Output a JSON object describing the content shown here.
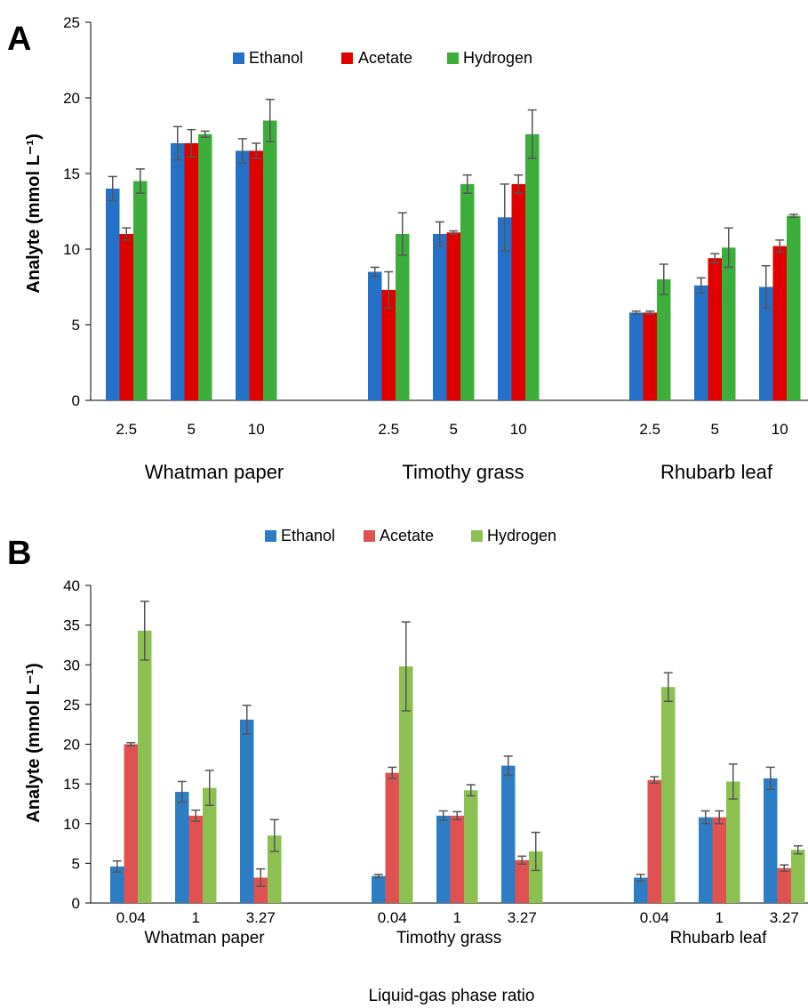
{
  "chart_data": [
    {
      "type": "bar",
      "panel_label": "A",
      "ylabel": "Analyte (mmol L⁻¹)",
      "xlabel": "",
      "ylim": [
        0,
        25
      ],
      "yticks": [
        0,
        5,
        10,
        15,
        20,
        25
      ],
      "legend_position": "top-center",
      "groups": [
        "Whatman paper",
        "Timothy grass",
        "Rhubarb leaf"
      ],
      "categories": [
        "2.5",
        "5",
        "10"
      ],
      "series": [
        {
          "name": "Ethanol",
          "color": "#2472C8",
          "values": [
            [
              14.0,
              17.0,
              16.5
            ],
            [
              8.5,
              11.0,
              12.1
            ],
            [
              5.8,
              7.6,
              7.5
            ]
          ],
          "errors": [
            [
              0.8,
              1.1,
              0.8
            ],
            [
              0.3,
              0.8,
              2.2
            ],
            [
              0.1,
              0.5,
              1.4
            ]
          ]
        },
        {
          "name": "Acetate",
          "color": "#E00000",
          "values": [
            [
              11.0,
              17.0,
              16.5
            ],
            [
              7.3,
              11.1,
              14.3
            ],
            [
              5.8,
              9.4,
              10.2
            ]
          ],
          "errors": [
            [
              0.4,
              0.9,
              0.5
            ],
            [
              1.2,
              0.1,
              0.6
            ],
            [
              0.1,
              0.3,
              0.4
            ]
          ]
        },
        {
          "name": "Hydrogen",
          "color": "#3DAE3C",
          "values": [
            [
              14.5,
              17.6,
              18.5
            ],
            [
              11.0,
              14.3,
              17.6
            ],
            [
              8.0,
              10.1,
              12.2
            ]
          ],
          "errors": [
            [
              0.8,
              0.2,
              1.4
            ],
            [
              1.4,
              0.6,
              1.6
            ],
            [
              1.0,
              1.3,
              0.1
            ]
          ]
        }
      ]
    },
    {
      "type": "bar",
      "panel_label": "B",
      "ylabel": "Analyte (mmol L⁻¹)",
      "xlabel": "Liquid-gas phase ratio",
      "ylim": [
        0,
        40
      ],
      "yticks": [
        0,
        5,
        10,
        15,
        20,
        25,
        30,
        35,
        40
      ],
      "legend_position": "top-center",
      "groups": [
        "Whatman paper",
        "Timothy grass",
        "Rhubarb leaf"
      ],
      "categories": [
        "0.04",
        "1",
        "3.27"
      ],
      "series": [
        {
          "name": "Ethanol",
          "color": "#2C7DC4",
          "values": [
            [
              4.6,
              14.0,
              23.1
            ],
            [
              3.4,
              11.0,
              17.3
            ],
            [
              3.2,
              10.8,
              15.7
            ]
          ],
          "errors": [
            [
              0.7,
              1.3,
              1.8
            ],
            [
              0.2,
              0.6,
              1.2
            ],
            [
              0.4,
              0.8,
              1.4
            ]
          ]
        },
        {
          "name": "Acetate",
          "color": "#E05252",
          "values": [
            [
              20.0,
              11.0,
              3.2
            ],
            [
              16.4,
              11.0,
              5.4
            ],
            [
              15.5,
              10.8,
              4.4
            ]
          ],
          "errors": [
            [
              0.2,
              0.7,
              1.1
            ],
            [
              0.7,
              0.5,
              0.5
            ],
            [
              0.4,
              0.8,
              0.4
            ]
          ]
        },
        {
          "name": "Hydrogen",
          "color": "#8CC152",
          "values": [
            [
              34.3,
              14.5,
              8.5
            ],
            [
              29.8,
              14.2,
              6.5
            ],
            [
              27.2,
              15.3,
              6.7
            ]
          ],
          "errors": [
            [
              3.7,
              2.2,
              2.0
            ],
            [
              5.6,
              0.7,
              2.4
            ],
            [
              1.8,
              2.2,
              0.5
            ]
          ]
        }
      ]
    }
  ]
}
